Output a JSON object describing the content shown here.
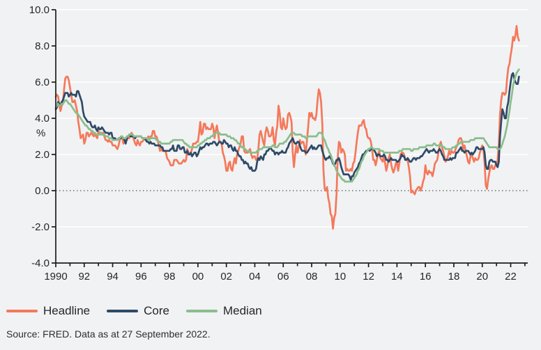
{
  "page_background": "#F1F2F4",
  "source_note": "Source: FRED. Data as at 27 September 2022.",
  "chart_data": {
    "type": "line",
    "title": "",
    "xlabel": "",
    "ylabel": "%",
    "grid": "horizontal-white",
    "grid_color": "#FFFFFF",
    "axis_color": "#1C1C1C",
    "text_color": "#262626",
    "zero_line": "dotted",
    "zero_line_color": "#555555",
    "legend_position": "bottom-left",
    "x_start": 1990.0,
    "x_step_months": 1,
    "x_axis": {
      "min": 1990,
      "max": 2023.2,
      "tick_every_years": 1
    },
    "y_axis": {
      "min": -4,
      "max": 10,
      "tick_step": 2
    },
    "y_tick_labels": [
      "-4.0",
      "-2.0",
      "0.0",
      "2.0",
      "4.0",
      "6.0",
      "8.0",
      "10.0"
    ],
    "x_tick_labels": [
      "1990",
      "92",
      "94",
      "96",
      "98",
      "00",
      "02",
      "04",
      "06",
      "08",
      "10",
      "12",
      "14",
      "16",
      "18",
      "20",
      "22"
    ],
    "series": [
      {
        "name": "Headline",
        "color": "#F4795A",
        "values": [
          5.2,
          5.3,
          5.2,
          4.7,
          4.4,
          4.7,
          4.8,
          5.6,
          6.2,
          6.3,
          6.3,
          6.1,
          5.7,
          5.3,
          4.9,
          4.9,
          5.0,
          4.7,
          4.4,
          3.8,
          3.4,
          2.9,
          3.0,
          3.1,
          2.6,
          2.8,
          3.2,
          3.2,
          3.0,
          3.1,
          3.2,
          3.1,
          3.0,
          3.2,
          3.0,
          2.9,
          3.3,
          3.2,
          3.1,
          3.2,
          3.2,
          3.0,
          2.8,
          2.8,
          2.7,
          2.8,
          2.7,
          2.7,
          2.5,
          2.5,
          2.5,
          2.4,
          2.3,
          2.5,
          2.8,
          2.9,
          3.0,
          2.6,
          2.7,
          2.7,
          2.8,
          2.9,
          2.9,
          3.1,
          3.2,
          3.0,
          2.8,
          2.6,
          2.5,
          2.8,
          2.6,
          2.5,
          2.7,
          2.7,
          2.8,
          2.9,
          2.9,
          2.8,
          3.0,
          2.9,
          3.0,
          3.0,
          3.3,
          3.3,
          3.0,
          3.0,
          2.8,
          2.5,
          2.2,
          2.3,
          2.2,
          2.2,
          2.2,
          2.1,
          1.8,
          1.7,
          1.6,
          1.4,
          1.4,
          1.4,
          1.7,
          1.7,
          1.7,
          1.6,
          1.5,
          1.5,
          1.5,
          1.6,
          1.7,
          1.6,
          1.7,
          2.3,
          2.1,
          2.0,
          2.1,
          2.3,
          2.6,
          2.6,
          2.6,
          2.7,
          2.7,
          3.2,
          3.8,
          3.1,
          3.2,
          3.7,
          3.7,
          3.4,
          3.5,
          3.4,
          3.4,
          3.4,
          3.7,
          3.5,
          2.9,
          3.3,
          3.6,
          3.2,
          2.7,
          2.7,
          2.6,
          2.1,
          1.9,
          1.6,
          1.1,
          1.1,
          1.5,
          1.6,
          1.2,
          1.1,
          1.5,
          1.8,
          1.5,
          2.0,
          2.2,
          2.4,
          2.6,
          3.0,
          3.0,
          2.2,
          2.1,
          2.1,
          2.1,
          2.2,
          2.3,
          2.0,
          1.8,
          1.9,
          1.9,
          1.7,
          1.7,
          2.3,
          3.1,
          3.3,
          3.0,
          2.7,
          2.5,
          3.2,
          3.5,
          3.3,
          3.0,
          3.0,
          3.1,
          3.5,
          2.8,
          2.5,
          3.2,
          3.6,
          4.7,
          4.3,
          3.5,
          3.4,
          4.0,
          3.6,
          3.4,
          3.5,
          4.2,
          4.3,
          4.1,
          3.8,
          2.1,
          1.3,
          2.0,
          2.5,
          2.1,
          2.4,
          2.8,
          2.6,
          2.7,
          2.7,
          2.4,
          2.0,
          2.8,
          3.5,
          4.3,
          4.1,
          4.3,
          4.0,
          4.0,
          3.9,
          4.2,
          5.0,
          5.6,
          5.4,
          4.9,
          3.7,
          1.1,
          0.1,
          0.0,
          0.2,
          -0.4,
          -0.7,
          -1.3,
          -1.4,
          -2.1,
          -1.5,
          -1.3,
          -0.2,
          1.8,
          2.7,
          2.6,
          2.1,
          2.3,
          2.2,
          2.0,
          1.1,
          1.2,
          1.1,
          1.1,
          1.2,
          1.1,
          1.5,
          1.6,
          2.1,
          2.7,
          3.2,
          3.6,
          3.6,
          3.6,
          3.8,
          3.9,
          3.5,
          3.4,
          3.0,
          2.9,
          2.9,
          2.7,
          2.3,
          1.7,
          1.7,
          1.4,
          1.7,
          2.0,
          2.2,
          1.8,
          1.7,
          1.6,
          2.0,
          1.5,
          1.1,
          1.4,
          1.8,
          2.0,
          1.5,
          1.2,
          1.0,
          1.2,
          1.5,
          1.6,
          1.1,
          1.5,
          2.0,
          2.1,
          2.1,
          2.0,
          1.7,
          1.7,
          1.7,
          1.3,
          0.8,
          -0.1,
          0.0,
          -0.1,
          -0.2,
          0.0,
          0.1,
          0.2,
          0.2,
          0.0,
          0.2,
          0.5,
          0.7,
          1.4,
          1.0,
          0.9,
          1.1,
          1.0,
          1.0,
          0.8,
          1.1,
          1.5,
          1.6,
          1.7,
          2.1,
          2.5,
          2.7,
          2.4,
          2.2,
          1.9,
          1.6,
          1.7,
          1.9,
          2.2,
          2.0,
          2.2,
          2.1,
          2.1,
          2.2,
          2.4,
          2.5,
          2.8,
          2.9,
          2.9,
          2.7,
          2.3,
          2.5,
          2.2,
          1.9,
          1.6,
          1.5,
          1.9,
          2.0,
          1.8,
          1.6,
          1.8,
          1.7,
          1.7,
          1.8,
          2.1,
          2.3,
          2.5,
          2.3,
          1.5,
          0.3,
          0.1,
          0.6,
          1.0,
          1.3,
          1.4,
          1.2,
          1.2,
          1.4,
          1.4,
          1.7,
          2.6,
          4.2,
          5.0,
          5.4,
          5.4,
          5.3,
          5.4,
          6.2,
          6.8,
          7.0,
          7.5,
          7.9,
          8.5,
          8.3,
          8.6,
          9.1,
          8.5,
          8.3
        ]
      },
      {
        "name": "Core",
        "color": "#2F4A68",
        "values": [
          4.5,
          4.6,
          4.9,
          4.8,
          4.7,
          4.9,
          5.0,
          5.2,
          5.4,
          5.4,
          5.4,
          5.2,
          5.3,
          5.4,
          5.3,
          5.3,
          5.3,
          5.2,
          5.5,
          5.5,
          5.3,
          5.1,
          4.9,
          4.4,
          4.1,
          4.0,
          3.9,
          3.8,
          3.8,
          3.8,
          3.6,
          3.5,
          3.5,
          3.6,
          3.4,
          3.3,
          3.5,
          3.4,
          3.4,
          3.5,
          3.4,
          3.3,
          3.2,
          3.2,
          3.2,
          3.1,
          3.2,
          3.2,
          2.9,
          2.9,
          2.9,
          2.8,
          2.8,
          2.9,
          2.9,
          2.9,
          3.0,
          2.9,
          2.8,
          2.6,
          2.9,
          3.0,
          3.1,
          3.0,
          3.0,
          3.0,
          3.0,
          2.9,
          3.0,
          3.0,
          3.0,
          3.0,
          3.0,
          2.9,
          2.9,
          2.9,
          2.8,
          2.7,
          2.7,
          2.6,
          2.7,
          2.6,
          2.6,
          2.6,
          2.5,
          2.5,
          2.5,
          2.5,
          2.5,
          2.4,
          2.4,
          2.2,
          2.2,
          2.2,
          2.2,
          2.2,
          2.2,
          2.3,
          2.3,
          2.5,
          2.2,
          2.2,
          2.2,
          2.5,
          2.5,
          2.3,
          2.3,
          2.4,
          2.4,
          2.1,
          2.1,
          2.2,
          2.0,
          2.0,
          2.1,
          1.9,
          2.0,
          2.1,
          2.1,
          1.9,
          2.0,
          2.2,
          2.4,
          2.3,
          2.4,
          2.4,
          2.5,
          2.6,
          2.6,
          2.5,
          2.6,
          2.6,
          2.6,
          2.7,
          2.7,
          2.6,
          2.5,
          2.6,
          2.7,
          2.7,
          2.6,
          2.6,
          2.8,
          2.7,
          2.6,
          2.6,
          2.4,
          2.5,
          2.5,
          2.3,
          2.2,
          2.4,
          2.2,
          2.2,
          2.0,
          1.9,
          1.9,
          1.7,
          1.7,
          1.5,
          1.6,
          1.5,
          1.5,
          1.3,
          1.2,
          1.3,
          1.1,
          1.1,
          1.1,
          1.2,
          1.6,
          1.8,
          1.7,
          1.9,
          1.8,
          1.7,
          2.0,
          2.0,
          2.2,
          2.2,
          2.3,
          2.4,
          2.3,
          2.2,
          2.2,
          2.0,
          2.1,
          2.1,
          2.0,
          2.1,
          2.1,
          2.2,
          2.1,
          2.1,
          2.1,
          2.3,
          2.4,
          2.6,
          2.7,
          2.8,
          2.9,
          2.7,
          2.6,
          2.6,
          2.7,
          2.7,
          2.5,
          2.3,
          2.2,
          2.2,
          2.2,
          2.1,
          2.1,
          2.2,
          2.3,
          2.4,
          2.5,
          2.3,
          2.4,
          2.3,
          2.3,
          2.4,
          2.5,
          2.5,
          2.5,
          2.2,
          2.0,
          1.8,
          1.7,
          1.8,
          1.8,
          1.9,
          1.8,
          1.7,
          1.5,
          1.4,
          1.5,
          1.7,
          1.7,
          1.8,
          1.6,
          1.3,
          1.1,
          0.9,
          0.9,
          0.9,
          0.9,
          0.9,
          0.8,
          0.6,
          0.8,
          0.8,
          1.0,
          1.1,
          1.2,
          1.3,
          1.5,
          1.6,
          1.8,
          2.0,
          2.0,
          2.1,
          2.2,
          2.2,
          2.3,
          2.2,
          2.3,
          2.3,
          2.3,
          2.2,
          2.1,
          1.9,
          2.0,
          2.0,
          1.9,
          1.9,
          1.9,
          2.0,
          1.9,
          1.7,
          1.7,
          1.6,
          1.7,
          1.8,
          1.7,
          1.7,
          1.7,
          1.7,
          1.6,
          1.6,
          1.7,
          1.8,
          2.0,
          1.9,
          1.9,
          1.7,
          1.7,
          1.8,
          1.7,
          1.6,
          1.6,
          1.7,
          1.8,
          1.8,
          1.7,
          1.8,
          1.8,
          1.8,
          1.9,
          1.9,
          2.0,
          2.1,
          2.2,
          2.3,
          2.2,
          2.1,
          2.2,
          2.2,
          2.2,
          2.3,
          2.2,
          2.1,
          2.1,
          2.2,
          2.3,
          2.2,
          2.0,
          1.9,
          1.7,
          1.7,
          1.7,
          1.7,
          1.7,
          1.8,
          1.7,
          1.8,
          1.8,
          1.8,
          2.1,
          2.1,
          2.2,
          2.3,
          2.4,
          2.2,
          2.2,
          2.1,
          2.2,
          2.2,
          2.2,
          2.1,
          2.0,
          2.1,
          2.0,
          2.1,
          2.2,
          2.4,
          2.4,
          2.3,
          2.3,
          2.3,
          2.3,
          2.4,
          2.1,
          1.4,
          1.2,
          1.2,
          1.6,
          1.7,
          1.7,
          1.6,
          1.6,
          1.6,
          1.4,
          1.3,
          1.6,
          3.0,
          3.8,
          4.5,
          4.3,
          4.0,
          4.0,
          4.6,
          4.9,
          5.5,
          6.0,
          6.4,
          6.5,
          6.2,
          6.0,
          5.9,
          5.9,
          6.3
        ]
      },
      {
        "name": "Median",
        "color": "#89BE8C",
        "values": [
          4.6,
          4.7,
          4.8,
          4.7,
          4.7,
          4.8,
          4.8,
          4.9,
          5.0,
          5.0,
          4.9,
          4.8,
          4.8,
          4.7,
          4.6,
          4.5,
          4.4,
          4.3,
          4.3,
          4.2,
          4.1,
          4.0,
          3.9,
          3.8,
          3.7,
          3.6,
          3.6,
          3.5,
          3.4,
          3.4,
          3.3,
          3.3,
          3.2,
          3.2,
          3.1,
          3.1,
          3.1,
          3.1,
          3.2,
          3.1,
          3.1,
          3.1,
          3.0,
          3.0,
          3.0,
          2.9,
          2.9,
          2.9,
          2.8,
          2.8,
          2.8,
          2.8,
          2.8,
          2.9,
          2.9,
          3.0,
          3.0,
          2.9,
          2.9,
          2.9,
          3.0,
          3.0,
          3.1,
          3.1,
          3.1,
          3.1,
          3.0,
          3.0,
          3.0,
          3.0,
          3.0,
          3.0,
          3.0,
          2.9,
          2.9,
          2.9,
          2.9,
          2.9,
          2.9,
          2.8,
          2.9,
          2.9,
          2.9,
          2.9,
          2.9,
          2.8,
          2.8,
          2.7,
          2.7,
          2.6,
          2.6,
          2.6,
          2.6,
          2.6,
          2.6,
          2.6,
          2.6,
          2.7,
          2.7,
          2.8,
          2.8,
          2.8,
          2.8,
          2.8,
          2.8,
          2.8,
          2.8,
          2.8,
          2.7,
          2.6,
          2.6,
          2.5,
          2.5,
          2.4,
          2.4,
          2.4,
          2.4,
          2.4,
          2.4,
          2.4,
          2.5,
          2.5,
          2.6,
          2.6,
          2.7,
          2.7,
          2.8,
          2.8,
          2.9,
          2.9,
          2.9,
          3.0,
          3.0,
          3.1,
          3.1,
          3.2,
          3.2,
          3.2,
          3.2,
          3.1,
          3.1,
          3.1,
          3.1,
          3.1,
          3.1,
          3.0,
          3.0,
          3.0,
          2.9,
          2.9,
          2.9,
          2.8,
          2.8,
          2.7,
          2.6,
          2.6,
          2.5,
          2.4,
          2.4,
          2.3,
          2.3,
          2.2,
          2.2,
          2.2,
          2.1,
          2.1,
          2.1,
          2.1,
          2.1,
          2.1,
          2.2,
          2.2,
          2.3,
          2.3,
          2.3,
          2.4,
          2.4,
          2.4,
          2.4,
          2.4,
          2.4,
          2.4,
          2.4,
          2.5,
          2.5,
          2.4,
          2.4,
          2.4,
          2.5,
          2.6,
          2.6,
          2.6,
          2.6,
          2.7,
          2.7,
          2.8,
          2.9,
          3.0,
          3.1,
          3.2,
          3.2,
          3.2,
          3.1,
          3.1,
          3.1,
          3.1,
          3.1,
          3.1,
          3.0,
          3.0,
          3.0,
          2.9,
          2.9,
          3.0,
          3.0,
          3.0,
          3.0,
          3.0,
          3.0,
          3.0,
          3.0,
          3.1,
          3.2,
          3.2,
          3.2,
          3.1,
          2.9,
          2.8,
          2.6,
          2.4,
          2.3,
          2.1,
          2.0,
          1.8,
          1.6,
          1.4,
          1.3,
          1.1,
          1.0,
          0.9,
          0.8,
          0.7,
          0.6,
          0.6,
          0.5,
          0.5,
          0.5,
          0.5,
          0.5,
          0.5,
          0.5,
          0.6,
          0.7,
          0.8,
          0.9,
          1.1,
          1.2,
          1.4,
          1.6,
          1.7,
          1.9,
          2.0,
          2.1,
          2.2,
          2.3,
          2.3,
          2.4,
          2.4,
          2.3,
          2.3,
          2.3,
          2.3,
          2.3,
          2.3,
          2.2,
          2.2,
          2.2,
          2.1,
          2.1,
          2.1,
          2.1,
          2.1,
          2.1,
          2.1,
          2.1,
          2.1,
          2.1,
          2.1,
          2.1,
          2.1,
          2.2,
          2.2,
          2.2,
          2.3,
          2.3,
          2.3,
          2.3,
          2.3,
          2.3,
          2.3,
          2.2,
          2.2,
          2.3,
          2.3,
          2.3,
          2.3,
          2.3,
          2.4,
          2.4,
          2.4,
          2.4,
          2.4,
          2.4,
          2.5,
          2.5,
          2.5,
          2.5,
          2.5,
          2.5,
          2.6,
          2.6,
          2.5,
          2.5,
          2.5,
          2.5,
          2.5,
          2.5,
          2.4,
          2.4,
          2.3,
          2.3,
          2.3,
          2.3,
          2.3,
          2.3,
          2.4,
          2.4,
          2.4,
          2.5,
          2.5,
          2.6,
          2.6,
          2.7,
          2.7,
          2.7,
          2.7,
          2.7,
          2.7,
          2.7,
          2.7,
          2.8,
          2.8,
          2.8,
          2.8,
          2.9,
          2.9,
          2.9,
          2.9,
          2.9,
          2.9,
          2.9,
          2.9,
          2.8,
          2.7,
          2.6,
          2.5,
          2.4,
          2.4,
          2.4,
          2.4,
          2.4,
          2.4,
          2.4,
          2.3,
          2.3,
          2.3,
          2.4,
          2.6,
          2.8,
          3.0,
          3.3,
          3.6,
          4.0,
          4.4,
          4.9,
          5.3,
          5.8,
          6.1,
          6.3,
          6.5,
          6.6,
          6.7
        ]
      }
    ]
  }
}
